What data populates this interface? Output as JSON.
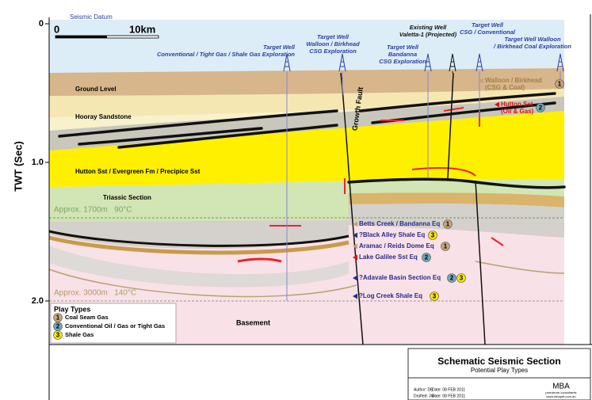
{
  "axis": {
    "label": "TWT (Sec)",
    "ticks": [
      "0",
      "1.0",
      "2.0"
    ]
  },
  "datum": "Seismic Datum",
  "scale": {
    "start": "0",
    "end": "10km"
  },
  "wells": [
    {
      "lines": [
        "Target Well",
        "Conventional / Tight Gas / Shale Gas Exploration"
      ]
    },
    {
      "lines": [
        "Target Well",
        "Walloon / Birkhead",
        "CSG Exploration"
      ]
    },
    {
      "lines": [
        "Target Well",
        "Bandanna",
        "CSG Exploration"
      ]
    },
    {
      "lines": [
        "Existing Well",
        "Valetta-1 (Projected)"
      ]
    },
    {
      "lines": [
        "Target Well",
        "CSG / Conventional"
      ]
    },
    {
      "lines": [
        "Target Well Walloon",
        "/ Birkhead Coal Exploration"
      ]
    }
  ],
  "layers": {
    "ground": "Ground Level",
    "hooray": "Hooray Sandstone",
    "hutton": "Hutton Sst / Evergreen Fm / Precipice Sst",
    "triassic": "Triassic Section",
    "basement": "Basement"
  },
  "depth_notes": [
    "Approx. 1700m   90°C",
    "Approx. 3000m   140°C"
  ],
  "fault": "Growth Fault",
  "targets": [
    {
      "lines": [
        "Walloon / Birkhead",
        "(CSG & Coal)"
      ],
      "plays": [
        "1"
      ]
    },
    {
      "lines": [
        "Hutton Sst",
        "(Oil & Gas)"
      ],
      "plays": [
        "2"
      ]
    },
    {
      "lines": [
        "Betts Creek / Bandanna Eq"
      ],
      "plays": [
        "1"
      ]
    },
    {
      "lines": [
        "?Black Alley Shale Eq"
      ],
      "plays": [
        "3"
      ]
    },
    {
      "lines": [
        "Aramac / Reids Dome Eq"
      ],
      "plays": [
        "1"
      ]
    },
    {
      "lines": [
        "Lake Galilee Sst Eq"
      ],
      "plays": [
        "2"
      ]
    },
    {
      "lines": [
        "?Adavale Basin Section Eq"
      ],
      "plays": [
        "2",
        "3"
      ]
    },
    {
      "lines": [
        "?Log Creek Shale Eq"
      ],
      "plays": [
        "3"
      ]
    }
  ],
  "legend": {
    "title": "Play Types",
    "items": [
      {
        "key": "1",
        "label": "Coal Seam Gas"
      },
      {
        "key": "2",
        "label": "Conventional Oil / Gas or Tight Gas"
      },
      {
        "key": "3",
        "label": "Shale Gas"
      }
    ]
  },
  "title_block": {
    "title": "Schematic Seismic Section",
    "subtitle": "Potential Play Types",
    "credits": [
      "Author: DB",
      "Date: 08 FEB 2011",
      "Drafted: JW",
      "Date: 08 FEB 2011"
    ],
    "logo": "MBA",
    "logo_sub": "petroleum consultants",
    "url": "www.mbapet.com.au"
  }
}
